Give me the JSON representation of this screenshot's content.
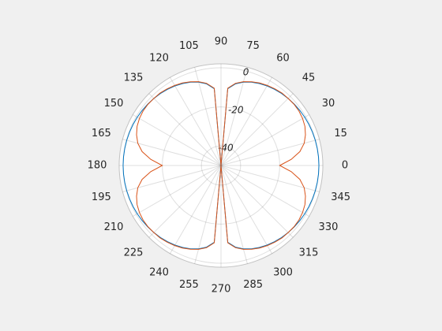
{
  "chart_data": {
    "type": "polar",
    "theta": [
      0,
      5,
      10,
      15,
      20,
      25,
      30,
      35,
      40,
      45,
      50,
      55,
      60,
      65,
      70,
      75,
      80,
      85,
      90,
      95,
      100,
      105,
      110,
      115,
      120,
      125,
      130,
      135,
      140,
      145,
      150,
      155,
      160,
      165,
      170,
      175,
      180,
      185,
      190,
      195,
      200,
      205,
      210,
      215,
      220,
      225,
      230,
      235,
      240,
      245,
      250,
      255,
      260,
      265,
      270,
      275,
      280,
      285,
      290,
      295,
      300,
      305,
      310,
      315,
      320,
      325,
      330,
      335,
      340,
      345,
      350,
      355
    ],
    "series": [
      {
        "color": "#0072bd",
        "values": [
          0,
          -0.02,
          -0.07,
          -0.15,
          -0.27,
          -0.43,
          -0.62,
          -0.87,
          -1.16,
          -1.51,
          -1.92,
          -2.41,
          -3.01,
          -3.74,
          -4.66,
          -5.87,
          -7.6,
          -10.6,
          -50,
          -10.6,
          -7.6,
          -5.87,
          -4.66,
          -3.74,
          -3.01,
          -2.41,
          -1.92,
          -1.51,
          -1.16,
          -0.87,
          -0.62,
          -0.43,
          -0.27,
          -0.15,
          -0.07,
          -0.02,
          0,
          -0.02,
          -0.07,
          -0.15,
          -0.27,
          -0.43,
          -0.62,
          -0.87,
          -1.16,
          -1.51,
          -1.92,
          -2.41,
          -3.01,
          -3.74,
          -4.66,
          -5.87,
          -7.6,
          -10.6,
          -50,
          -10.6,
          -7.6,
          -5.87,
          -4.66,
          -3.74,
          -3.01,
          -2.41,
          -1.92,
          -1.51,
          -1.16,
          -0.87,
          -0.62,
          -0.43,
          -0.27,
          -0.15,
          -0.07,
          -0.02
        ]
      },
      {
        "color": "#d95319",
        "values": [
          -20,
          -14.0,
          -9.1,
          -6.0,
          -4.1,
          -2.7,
          -1.9,
          -1.4,
          -1.3,
          -1.5,
          -1.6,
          -2.1,
          -2.7,
          -3.4,
          -4.4,
          -5.6,
          -7.3,
          -10.3,
          -50,
          -10.3,
          -7.3,
          -5.6,
          -4.4,
          -3.4,
          -2.7,
          -2.1,
          -1.6,
          -1.5,
          -1.3,
          -1.4,
          -1.9,
          -2.7,
          -4.1,
          -6.0,
          -9.1,
          -14.0,
          -20,
          -14.0,
          -9.1,
          -6.0,
          -4.1,
          -2.7,
          -1.9,
          -1.4,
          -1.3,
          -1.5,
          -1.6,
          -2.1,
          -2.7,
          -3.4,
          -4.4,
          -5.6,
          -7.3,
          -10.3,
          -50,
          -10.3,
          -7.3,
          -5.6,
          -4.4,
          -3.4,
          -2.7,
          -2.1,
          -1.6,
          -1.5,
          -1.3,
          -1.4,
          -1.9,
          -2.7,
          -4.1,
          -6.0,
          -9.1,
          -14.0
        ]
      }
    ],
    "thetaticks": [
      0,
      15,
      30,
      45,
      60,
      75,
      90,
      105,
      120,
      135,
      150,
      165,
      180,
      195,
      210,
      225,
      240,
      255,
      270,
      285,
      300,
      315,
      330,
      345
    ],
    "rlim": [
      -50,
      2
    ],
    "rticks": [
      -40,
      -20,
      0
    ],
    "grid": true
  }
}
